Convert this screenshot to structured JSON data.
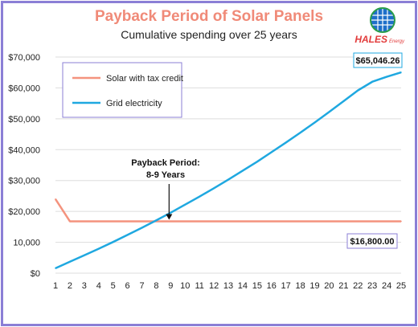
{
  "colors": {
    "title": "#f08a78",
    "solar": "#f4937e",
    "grid": "#1fa8e0",
    "border": "#8b7fd6",
    "callout_grid_border": "#1fa8e0",
    "callout_solar_border": "#8b7fd6",
    "gridline": "#dddddd"
  },
  "logo": {
    "name": "HALES",
    "suffix": "Energy",
    "icon": "solar-panel-globe-icon"
  },
  "chart_data": {
    "type": "line",
    "title": "Payback Period of Solar Panels",
    "subtitle": "Cumulative spending over 25 years",
    "xlabel": "",
    "ylabel": "",
    "x": [
      1,
      2,
      3,
      4,
      5,
      6,
      7,
      8,
      9,
      10,
      11,
      12,
      13,
      14,
      15,
      16,
      17,
      18,
      19,
      20,
      21,
      22,
      23,
      24,
      25
    ],
    "x_ticks": [
      "1",
      "2",
      "3",
      "4",
      "5",
      "6",
      "7",
      "8",
      "9",
      "10",
      "11",
      "12",
      "13",
      "14",
      "15",
      "16",
      "17",
      "18",
      "19",
      "20",
      "21",
      "22",
      "23",
      "24",
      "25"
    ],
    "ylim": [
      0,
      70000
    ],
    "y_ticks": [
      "$0",
      "10,000",
      "$20,000",
      "$30,000",
      "$40,000",
      "$50,000",
      "$60,000",
      "$70,000"
    ],
    "grid": true,
    "legend_position": "top-left",
    "series": [
      {
        "name": "Solar with tax credit",
        "values": [
          24000,
          16800,
          16800,
          16800,
          16800,
          16800,
          16800,
          16800,
          16800,
          16800,
          16800,
          16800,
          16800,
          16800,
          16800,
          16800,
          16800,
          16800,
          16800,
          16800,
          16800,
          16800,
          16800,
          16800,
          16800
        ]
      },
      {
        "name": "Grid electricity",
        "values": [
          1600,
          3700,
          5800,
          7900,
          10100,
          12400,
          14700,
          17100,
          19600,
          22200,
          24800,
          27500,
          30300,
          33200,
          36100,
          39200,
          42300,
          45500,
          48800,
          52200,
          55700,
          59200,
          62000,
          63600,
          65046.26
        ]
      }
    ],
    "annotations": [
      {
        "text_line1": "Payback Period:",
        "text_line2": "8-9 Years",
        "x": 9,
        "y": 16800
      },
      {
        "text": "$65,046.26",
        "x": 25,
        "y": 65046.26,
        "series": "Grid electricity"
      },
      {
        "text": "$16,800.00",
        "x": 25,
        "y": 16800,
        "series": "Solar with tax credit"
      }
    ]
  }
}
